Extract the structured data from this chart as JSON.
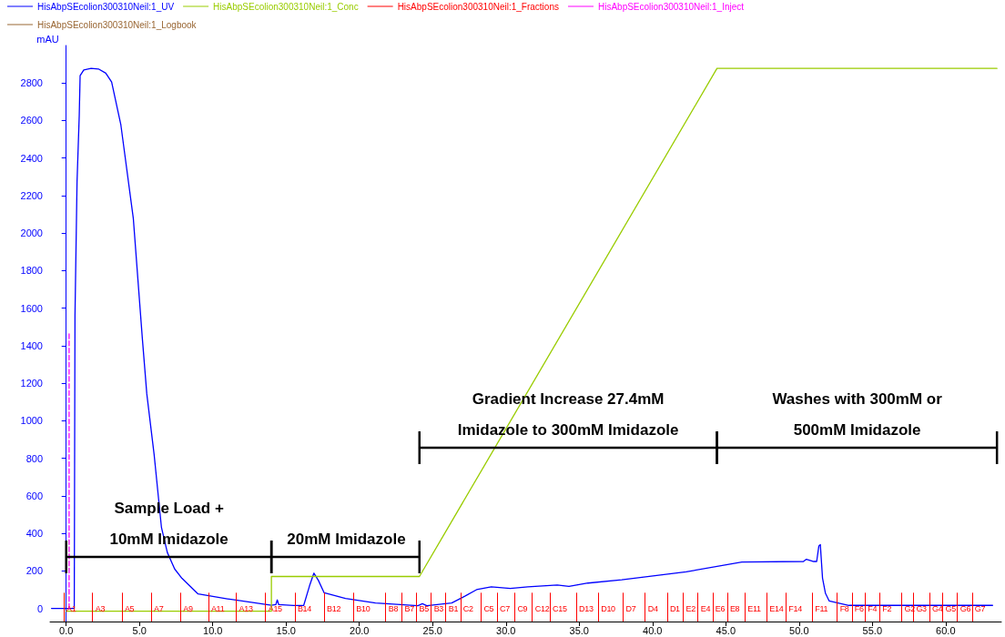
{
  "chart_data": {
    "type": "line",
    "ylabel": "mAU",
    "xlim": [
      -1.1,
      63.8
    ],
    "ylim": [
      -70,
      3000
    ],
    "xticks": [
      {
        "value": 0,
        "label": "0.0"
      },
      {
        "value": 5,
        "label": "5.0"
      },
      {
        "value": 10,
        "label": "10.0"
      },
      {
        "value": 15,
        "label": "15.0"
      },
      {
        "value": 20,
        "label": "20.0"
      },
      {
        "value": 25,
        "label": "25.0"
      },
      {
        "value": 30,
        "label": "30.0"
      },
      {
        "value": 35,
        "label": "35.0"
      },
      {
        "value": 40,
        "label": "40.0"
      },
      {
        "value": 45,
        "label": "45.0"
      },
      {
        "value": 50,
        "label": "50.0"
      },
      {
        "value": 55,
        "label": "55.0"
      },
      {
        "value": 60,
        "label": "60.0"
      }
    ],
    "yticks": [
      0,
      200,
      400,
      600,
      800,
      1000,
      1200,
      1400,
      1600,
      1800,
      2000,
      2200,
      2400,
      2600,
      2800
    ],
    "grid": false,
    "legend": "top left",
    "marker": "none",
    "series": [
      {
        "name": "HisAbpSEcolion300310Neil:1_UV",
        "color": "#0000ff",
        "x": [
          -1.0,
          0.55,
          0.6,
          0.74,
          0.89,
          0.95,
          1.2,
          1.7,
          2.2,
          2.7,
          3.1,
          3.73,
          4.58,
          5.2,
          5.5,
          6.0,
          6.5,
          6.9,
          7.4,
          7.9,
          9.0,
          11.0,
          14.0,
          14.3,
          14.4,
          14.5,
          15.5,
          16.2,
          16.6,
          16.9,
          17.2,
          17.6,
          19.05,
          21.1,
          24.0,
          24.3,
          24.6,
          26.3,
          27.2,
          28.0,
          29.0,
          30.3,
          31.5,
          33.5,
          34.3,
          35.6,
          37.9,
          42.3,
          46.1,
          50.3,
          50.5,
          51.0,
          51.2,
          51.35,
          51.45,
          51.6,
          51.8,
          52.05,
          53.4,
          63.2
        ],
        "values": [
          0,
          0,
          1560,
          2272,
          2626,
          2839,
          2870,
          2878,
          2875,
          2853,
          2805,
          2577,
          2078,
          1434,
          1143,
          819,
          431,
          298,
          210,
          160,
          77,
          51,
          17,
          20,
          45,
          20,
          15,
          15,
          120,
          188,
          150,
          83,
          53,
          29,
          14,
          25,
          14,
          29,
          65,
          100,
          115,
          106,
          115,
          125,
          117,
          135,
          152,
          195,
          247,
          250,
          262,
          250,
          250,
          333,
          340,
          161,
          80,
          40,
          16,
          16
        ]
      },
      {
        "name": "HisAbpSEcolion300310Neil:1_Conc",
        "color": "#99cc00",
        "x": [
          0,
          14.0,
          14.0,
          24.1,
          44.4,
          63.5
        ],
        "values": [
          -15,
          -15,
          170,
          170,
          2878,
          2878
        ]
      },
      {
        "name": "HisAbpSEcolion300310Neil:1_Fractions",
        "color": "#ff0000"
      },
      {
        "name": "HisAbpSEcolion300310Neil:1_Inject",
        "color": "#ff00ff",
        "line_style": "dashed",
        "x": [
          0.2,
          0.2
        ],
        "values": [
          0,
          1470
        ]
      },
      {
        "name": "HisAbpSEcolion300310Neil:1_Logbook",
        "color": "#996633"
      }
    ],
    "ref_lines": [
      {
        "axis": "x",
        "value": -0.17,
        "label": "A1",
        "color": "#ff0000"
      },
      {
        "axis": "x",
        "value": 1.8,
        "label": "A3",
        "color": "#ff0000"
      },
      {
        "axis": "x",
        "value": 3.8,
        "label": "A5",
        "color": "#ff0000"
      },
      {
        "axis": "x",
        "value": 5.8,
        "label": "A7",
        "color": "#ff0000"
      },
      {
        "axis": "x",
        "value": 7.8,
        "label": "A9",
        "color": "#ff0000"
      },
      {
        "axis": "x",
        "value": 9.7,
        "label": "A11",
        "color": "#ff0000"
      },
      {
        "axis": "x",
        "value": 11.6,
        "label": "A13",
        "color": "#ff0000"
      },
      {
        "axis": "x",
        "value": 13.6,
        "label": "A15",
        "color": "#ff0000"
      },
      {
        "axis": "x",
        "value": 15.6,
        "label": "B14",
        "color": "#ff0000"
      },
      {
        "axis": "x",
        "value": 17.6,
        "label": "B12",
        "color": "#ff0000"
      },
      {
        "axis": "x",
        "value": 19.6,
        "label": "B10",
        "color": "#ff0000"
      },
      {
        "axis": "x",
        "value": 21.8,
        "label": "B8",
        "color": "#ff0000"
      },
      {
        "axis": "x",
        "value": 22.9,
        "label": "B7",
        "color": "#ff0000"
      },
      {
        "axis": "x",
        "value": 23.9,
        "label": "B5",
        "color": "#ff0000"
      },
      {
        "axis": "x",
        "value": 24.9,
        "label": "B3",
        "color": "#ff0000"
      },
      {
        "axis": "x",
        "value": 25.9,
        "label": "B1",
        "color": "#ff0000"
      },
      {
        "axis": "x",
        "value": 26.9,
        "label": "C2",
        "color": "#ff0000"
      },
      {
        "axis": "x",
        "value": 28.3,
        "label": "C5",
        "color": "#ff0000"
      },
      {
        "axis": "x",
        "value": 29.4,
        "label": "C7",
        "color": "#ff0000"
      },
      {
        "axis": "x",
        "value": 30.6,
        "label": "C9",
        "color": "#ff0000"
      },
      {
        "axis": "x",
        "value": 31.8,
        "label": "C12",
        "color": "#ff0000"
      },
      {
        "axis": "x",
        "value": 33.0,
        "label": "C15",
        "color": "#ff0000"
      },
      {
        "axis": "x",
        "value": 34.8,
        "label": "D13",
        "color": "#ff0000"
      },
      {
        "axis": "x",
        "value": 36.3,
        "label": "D10",
        "color": "#ff0000"
      },
      {
        "axis": "x",
        "value": 38.0,
        "label": "D7",
        "color": "#ff0000"
      },
      {
        "axis": "x",
        "value": 39.5,
        "label": "D4",
        "color": "#ff0000"
      },
      {
        "axis": "x",
        "value": 41.0,
        "label": "D1",
        "color": "#ff0000"
      },
      {
        "axis": "x",
        "value": 42.1,
        "label": "E2",
        "color": "#ff0000"
      },
      {
        "axis": "x",
        "value": 43.1,
        "label": "E4",
        "color": "#ff0000"
      },
      {
        "axis": "x",
        "value": 44.1,
        "label": "E6",
        "color": "#ff0000"
      },
      {
        "axis": "x",
        "value": 45.1,
        "label": "E8",
        "color": "#ff0000"
      },
      {
        "axis": "x",
        "value": 46.3,
        "label": "E11",
        "color": "#ff0000"
      },
      {
        "axis": "x",
        "value": 47.8,
        "label": "E14",
        "color": "#ff0000"
      },
      {
        "axis": "x",
        "value": 49.1,
        "label": "F14",
        "color": "#ff0000"
      },
      {
        "axis": "x",
        "value": 50.9,
        "label": "F11",
        "color": "#ff0000"
      },
      {
        "axis": "x",
        "value": 52.6,
        "label": "F8",
        "color": "#ff0000"
      },
      {
        "axis": "x",
        "value": 53.6,
        "label": "F6",
        "color": "#ff0000"
      },
      {
        "axis": "x",
        "value": 54.5,
        "label": "F4",
        "color": "#ff0000"
      },
      {
        "axis": "x",
        "value": 55.5,
        "label": "F2",
        "color": "#ff0000"
      },
      {
        "axis": "x",
        "value": 57.0,
        "label": "G2",
        "color": "#ff0000"
      },
      {
        "axis": "x",
        "value": 57.8,
        "label": "G3",
        "color": "#ff0000"
      },
      {
        "axis": "x",
        "value": 58.9,
        "label": "G4",
        "color": "#ff0000"
      },
      {
        "axis": "x",
        "value": 59.8,
        "label": "G5",
        "color": "#ff0000"
      },
      {
        "axis": "x",
        "value": 60.8,
        "label": "G6",
        "color": "#ff0000"
      },
      {
        "axis": "x",
        "value": 61.8,
        "label": "G7",
        "color": "#ff0000"
      }
    ],
    "annotations": [
      "Sample Load +\n10mM Imidazole",
      {
        "text": "20mM Imidazole",
        "x": 19.1,
        "y": 170
      },
      "Gradient Increase 27.4mM\nImidazole to 300mM Imidazole",
      "Washes with 300mM or\n500mM Imidazole"
    ]
  }
}
